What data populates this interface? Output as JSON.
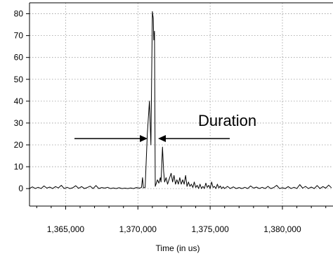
{
  "chart_data": {
    "type": "line",
    "title": "",
    "xlabel": "Time (in us)",
    "ylabel": "",
    "xlim": [
      1362500,
      1383500
    ],
    "ylim": [
      -8,
      85
    ],
    "x_ticks": [
      1365000,
      1370000,
      1375000,
      1380000
    ],
    "x_tick_labels": [
      "1,365,000",
      "1,370,000",
      "1,375,000",
      "1,380,000"
    ],
    "y_ticks": [
      0,
      10,
      20,
      30,
      40,
      50,
      60,
      70,
      80
    ],
    "y_tick_labels": [
      "0",
      "10",
      "20",
      "30",
      "40",
      "50",
      "60",
      "70",
      "80"
    ],
    "grid": true,
    "series": [
      {
        "values": [
          [
            1362500,
            0
          ],
          [
            1362700,
            0.8
          ],
          [
            1362900,
            0
          ],
          [
            1363100,
            0.6
          ],
          [
            1363300,
            0
          ],
          [
            1363500,
            1.2
          ],
          [
            1363700,
            0.2
          ],
          [
            1363900,
            0.7
          ],
          [
            1364100,
            0
          ],
          [
            1364300,
            0.9
          ],
          [
            1364500,
            0.3
          ],
          [
            1364700,
            1.5
          ],
          [
            1364900,
            0
          ],
          [
            1365100,
            0.6
          ],
          [
            1365300,
            0
          ],
          [
            1365500,
            0.4
          ],
          [
            1365700,
            1.3
          ],
          [
            1365900,
            0.1
          ],
          [
            1366100,
            0.9
          ],
          [
            1366300,
            0
          ],
          [
            1366500,
            0.5
          ],
          [
            1366700,
            1.1
          ],
          [
            1366900,
            0
          ],
          [
            1367100,
            1.4
          ],
          [
            1367300,
            0
          ],
          [
            1367500,
            0.5
          ],
          [
            1367700,
            0.2
          ],
          [
            1367900,
            0.6
          ],
          [
            1368100,
            0
          ],
          [
            1368300,
            0.3
          ],
          [
            1368500,
            0
          ],
          [
            1368700,
            0.4
          ],
          [
            1368900,
            0
          ],
          [
            1369100,
            0.2
          ],
          [
            1369300,
            0
          ],
          [
            1369500,
            0.3
          ],
          [
            1369700,
            0
          ],
          [
            1369900,
            0.5
          ],
          [
            1370100,
            0.2
          ],
          [
            1370250,
            0.5
          ],
          [
            1370320,
            5
          ],
          [
            1370380,
            0.3
          ],
          [
            1370500,
            0.5
          ],
          [
            1370650,
            25
          ],
          [
            1370800,
            40
          ],
          [
            1370900,
            20
          ],
          [
            1371000,
            81
          ],
          [
            1371060,
            78
          ],
          [
            1371100,
            68
          ],
          [
            1371150,
            72
          ],
          [
            1371200,
            1
          ],
          [
            1371350,
            4
          ],
          [
            1371450,
            2.5
          ],
          [
            1371550,
            5
          ],
          [
            1371600,
            3
          ],
          [
            1371700,
            19
          ],
          [
            1371780,
            8
          ],
          [
            1371850,
            3
          ],
          [
            1371950,
            5
          ],
          [
            1372050,
            2
          ],
          [
            1372150,
            4
          ],
          [
            1372300,
            7
          ],
          [
            1372400,
            3
          ],
          [
            1372500,
            6
          ],
          [
            1372600,
            2
          ],
          [
            1372700,
            4
          ],
          [
            1372800,
            2
          ],
          [
            1372900,
            5
          ],
          [
            1373000,
            2
          ],
          [
            1373100,
            4
          ],
          [
            1373200,
            2
          ],
          [
            1373300,
            6
          ],
          [
            1373400,
            1
          ],
          [
            1373500,
            3
          ],
          [
            1373600,
            1
          ],
          [
            1373700,
            2
          ],
          [
            1373800,
            0.5
          ],
          [
            1373900,
            3
          ],
          [
            1374000,
            0.5
          ],
          [
            1374100,
            1.5
          ],
          [
            1374200,
            0
          ],
          [
            1374300,
            2
          ],
          [
            1374400,
            0
          ],
          [
            1374500,
            1
          ],
          [
            1374600,
            0
          ],
          [
            1374700,
            2.5
          ],
          [
            1374800,
            0.5
          ],
          [
            1374900,
            1.5
          ],
          [
            1375000,
            0
          ],
          [
            1375100,
            3
          ],
          [
            1375200,
            0.5
          ],
          [
            1375300,
            1
          ],
          [
            1375400,
            0
          ],
          [
            1375500,
            2
          ],
          [
            1375600,
            0.3
          ],
          [
            1375700,
            1.2
          ],
          [
            1375800,
            0
          ],
          [
            1375900,
            0.8
          ],
          [
            1376000,
            0
          ],
          [
            1376200,
            1
          ],
          [
            1376400,
            0
          ],
          [
            1376600,
            0.8
          ],
          [
            1376800,
            0
          ],
          [
            1377000,
            0.5
          ],
          [
            1377200,
            0
          ],
          [
            1377400,
            0.6
          ],
          [
            1377600,
            0
          ],
          [
            1377800,
            1.2
          ],
          [
            1378000,
            0.2
          ],
          [
            1378200,
            0.7
          ],
          [
            1378400,
            0
          ],
          [
            1378600,
            0.6
          ],
          [
            1378800,
            0
          ],
          [
            1379000,
            1
          ],
          [
            1379200,
            0
          ],
          [
            1379400,
            0.5
          ],
          [
            1379600,
            1.5
          ],
          [
            1379800,
            0
          ],
          [
            1380000,
            0.4
          ],
          [
            1380200,
            0
          ],
          [
            1380400,
            0.9
          ],
          [
            1380600,
            0
          ],
          [
            1380800,
            0.6
          ],
          [
            1381000,
            0
          ],
          [
            1381200,
            1.8
          ],
          [
            1381400,
            0.2
          ],
          [
            1381600,
            1
          ],
          [
            1381800,
            0
          ],
          [
            1382000,
            0.7
          ],
          [
            1382200,
            0
          ],
          [
            1382400,
            1.4
          ],
          [
            1382600,
            0
          ],
          [
            1382800,
            0.9
          ],
          [
            1383000,
            0.2
          ],
          [
            1383200,
            1.6
          ],
          [
            1383400,
            0.3
          ]
        ]
      }
    ],
    "annotations": [
      {
        "text": "Duration"
      }
    ],
    "colors": {
      "line": "#000000",
      "grid": "#9a9a9a",
      "background": "#ffffff"
    }
  }
}
